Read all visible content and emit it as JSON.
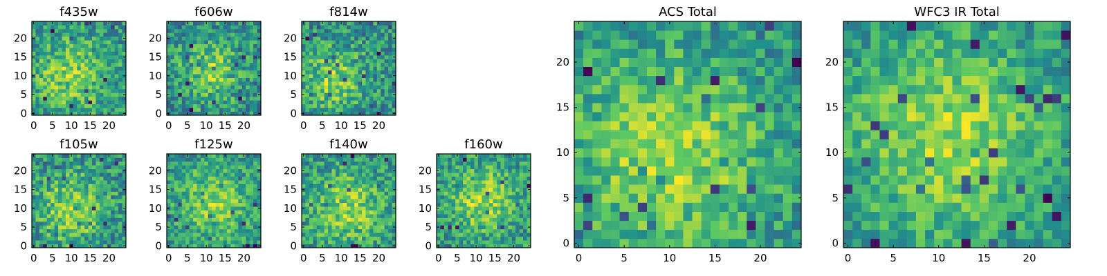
{
  "chart_data": {
    "type": "heatmap",
    "colormap": [
      "#440154",
      "#3b528b",
      "#21918c",
      "#5ec962",
      "#fde725"
    ],
    "panels": [
      {
        "title": "f435w",
        "grid_size": 25,
        "xlim": [
          -0.5,
          24.5
        ],
        "ylim": [
          -0.5,
          24.5
        ],
        "xticks": [
          0,
          5,
          10,
          15,
          20
        ],
        "yticks": [
          0,
          5,
          10,
          15,
          20
        ],
        "pattern": "noise",
        "center": [
          10,
          10
        ],
        "spread": 7,
        "noise": 0.45,
        "seed": 11
      },
      {
        "title": "f606w",
        "grid_size": 25,
        "xlim": [
          -0.5,
          24.5
        ],
        "ylim": [
          -0.5,
          24.5
        ],
        "xticks": [
          0,
          5,
          10,
          15,
          20
        ],
        "yticks": [
          0,
          5,
          10,
          15,
          20
        ],
        "pattern": "noise",
        "center": [
          11,
          11
        ],
        "spread": 6,
        "noise": 0.45,
        "seed": 23
      },
      {
        "title": "f814w",
        "grid_size": 25,
        "xlim": [
          -0.5,
          24.5
        ],
        "ylim": [
          -0.5,
          24.5
        ],
        "xticks": [
          0,
          5,
          10,
          15,
          20
        ],
        "yticks": [
          0,
          5,
          10,
          15,
          20
        ],
        "pattern": "noise",
        "center": [
          8,
          9
        ],
        "spread": 6,
        "noise": 0.45,
        "seed": 37
      },
      {
        "title": "ACS Total",
        "grid_size": 25,
        "xlim": [
          -0.5,
          24.5
        ],
        "ylim": [
          -0.5,
          24.5
        ],
        "xticks": [
          0,
          5,
          10,
          15,
          20
        ],
        "yticks": [
          0,
          5,
          10,
          15,
          20
        ],
        "pattern": "smooth",
        "center": [
          10,
          10
        ],
        "spread": 8,
        "noise": 0.32,
        "seed": 51
      },
      {
        "title": "WFC3 IR Total",
        "grid_size": 25,
        "xlim": [
          -0.5,
          24.5
        ],
        "ylim": [
          -0.5,
          24.5
        ],
        "xticks": [
          0,
          5,
          10,
          15,
          20
        ],
        "yticks": [
          0,
          5,
          10,
          15,
          20
        ],
        "pattern": "smooth",
        "center": [
          11,
          12
        ],
        "spread": 8,
        "noise": 0.28,
        "seed": 67
      },
      {
        "title": "f105w",
        "grid_size": 25,
        "xlim": [
          -0.5,
          24.5
        ],
        "ylim": [
          -0.5,
          24.5
        ],
        "xticks": [
          0,
          5,
          10,
          15,
          20
        ],
        "yticks": [
          0,
          5,
          10,
          15,
          20
        ],
        "pattern": "noise",
        "center": [
          10,
          10
        ],
        "spread": 7,
        "noise": 0.4,
        "seed": 79
      },
      {
        "title": "f125w",
        "grid_size": 25,
        "xlim": [
          -0.5,
          24.5
        ],
        "ylim": [
          -0.5,
          24.5
        ],
        "xticks": [
          0,
          5,
          10,
          15,
          20
        ],
        "yticks": [
          0,
          5,
          10,
          15,
          20
        ],
        "pattern": "noise",
        "center": [
          12,
          11
        ],
        "spread": 7,
        "noise": 0.4,
        "seed": 83
      },
      {
        "title": "f140w",
        "grid_size": 25,
        "xlim": [
          -0.5,
          24.5
        ],
        "ylim": [
          -0.5,
          24.5
        ],
        "xticks": [
          0,
          5,
          10,
          15,
          20
        ],
        "yticks": [
          0,
          5,
          10,
          15,
          20
        ],
        "pattern": "noise",
        "center": [
          12,
          10
        ],
        "spread": 7,
        "noise": 0.4,
        "seed": 97
      },
      {
        "title": "f160w",
        "grid_size": 25,
        "xlim": [
          -0.5,
          24.5
        ],
        "ylim": [
          -0.5,
          24.5
        ],
        "xticks": [
          0,
          5,
          10,
          15,
          20
        ],
        "yticks": [
          0,
          5,
          10,
          15,
          20
        ],
        "pattern": "noise",
        "center": [
          12,
          12
        ],
        "spread": 6,
        "noise": 0.4,
        "seed": 103
      }
    ]
  }
}
